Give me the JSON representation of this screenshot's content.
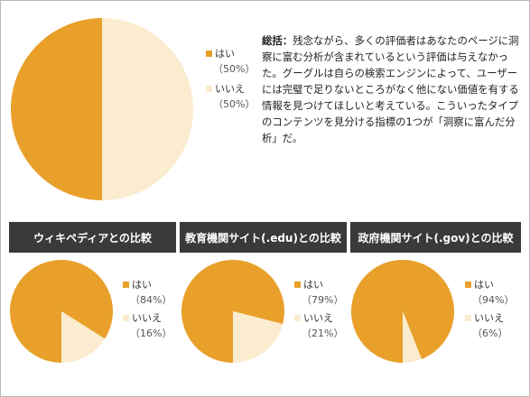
{
  "colors": {
    "yes": "#e8a02a",
    "no": "#fbecd0",
    "header_bg": "#3a3a3a"
  },
  "summary": {
    "heading": "総括：",
    "text": "残念ながら、多くの評価者はあなたのページに洞察に富む分析が含まれているという評価は与えなかった。グーグルは自らの検索エンジンによって、ユーザーには完璧で足りないところがなく他にない価値を有する情報を見つけてほしいと考えている。こういったタイプのコンテンツを見分ける指標の1つが「洞察に富んだ分析」だ。"
  },
  "chart_data": [
    {
      "type": "pie",
      "title": "",
      "series": [
        {
          "values": [
            50,
            50
          ]
        }
      ],
      "categories": [
        "はい",
        "いいえ"
      ],
      "labels": [
        "（50%）",
        "（50%）"
      ]
    },
    {
      "type": "pie",
      "title": "ウィキペディアとの比較",
      "series": [
        {
          "values": [
            84,
            16
          ]
        }
      ],
      "categories": [
        "はい",
        "いいえ"
      ],
      "labels": [
        "（84%）",
        "（16%）"
      ]
    },
    {
      "type": "pie",
      "title": "教育機関サイト(.edu)との比較",
      "series": [
        {
          "values": [
            79,
            21
          ]
        }
      ],
      "categories": [
        "はい",
        "いいえ"
      ],
      "labels": [
        "（79%）",
        "（21%）"
      ]
    },
    {
      "type": "pie",
      "title": "政府機関サイト(.gov)との比較",
      "series": [
        {
          "values": [
            94,
            6
          ]
        }
      ],
      "categories": [
        "はい",
        "いいえ"
      ],
      "labels": [
        "（94%）",
        "（6%）"
      ]
    }
  ]
}
